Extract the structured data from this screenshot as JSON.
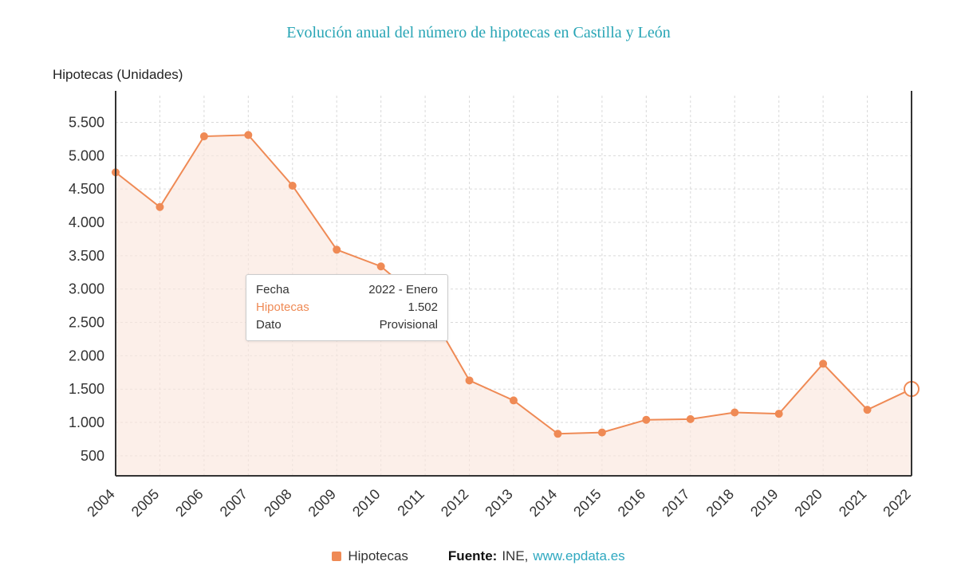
{
  "title": "Evolución anual del número de hipotecas en Castilla y León",
  "y_axis_title": "Hipotecas (Unidades)",
  "colors": {
    "accent": "#EF8A55",
    "title": "#28A5B5",
    "link": "#2FA8C0",
    "area_fill": "rgba(250,231,221,0.65)",
    "grid": "#d9d9d9",
    "axis": "#333333",
    "tick_text": "#333333"
  },
  "tooltip": {
    "rows": [
      {
        "label": "Fecha",
        "value": "2022 - Enero",
        "highlight": false
      },
      {
        "label": "Hipotecas",
        "value": "1.502",
        "highlight": true
      },
      {
        "label": "Dato",
        "value": "Provisional",
        "highlight": false
      }
    ]
  },
  "legend": {
    "series_label": "Hipotecas",
    "source_label": "Fuente:",
    "source_name": "INE,",
    "source_link": "www.epdata.es"
  },
  "chart_data": {
    "type": "line",
    "title": "Evolución anual del número de hipotecas en Castilla y León",
    "xlabel": "",
    "ylabel": "Hipotecas (Unidades)",
    "categories": [
      "2004",
      "2005",
      "2006",
      "2007",
      "2008",
      "2009",
      "2010",
      "2011",
      "2012",
      "2013",
      "2014",
      "2015",
      "2016",
      "2017",
      "2018",
      "2019",
      "2020",
      "2021",
      "2022"
    ],
    "series": [
      {
        "name": "Hipotecas",
        "values": [
          4750,
          4230,
          5290,
          5310,
          4550,
          3590,
          3340,
          2780,
          1630,
          1330,
          830,
          850,
          1040,
          1050,
          1150,
          1130,
          1880,
          1190,
          1502
        ]
      }
    ],
    "highlighted_point": {
      "category": "2022",
      "value": 1502
    },
    "ylim": [
      200,
      5900
    ],
    "yticks": [
      {
        "v": 500,
        "label": "500"
      },
      {
        "v": 1000,
        "label": "1.000"
      },
      {
        "v": 1500,
        "label": "1.500"
      },
      {
        "v": 2000,
        "label": "2.000"
      },
      {
        "v": 2500,
        "label": "2.500"
      },
      {
        "v": 3000,
        "label": "3.000"
      },
      {
        "v": 3500,
        "label": "3.500"
      },
      {
        "v": 4000,
        "label": "4.000"
      },
      {
        "v": 4500,
        "label": "4.500"
      },
      {
        "v": 5000,
        "label": "5.000"
      },
      {
        "v": 5500,
        "label": "5.500"
      }
    ],
    "grid": true,
    "legend_position": "bottom"
  }
}
